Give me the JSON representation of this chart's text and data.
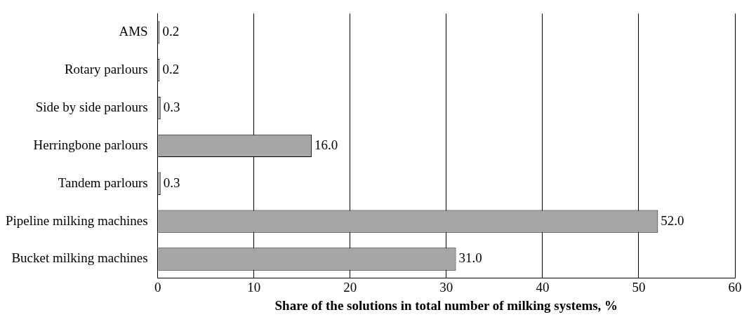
{
  "chart_data": {
    "type": "bar",
    "orientation": "horizontal",
    "xlabel": "Share of the solutions in total number of milking systems, %",
    "categories": [
      "AMS",
      "Rotary parlours",
      "Side by side parlours",
      "Herringbone parlours",
      "Tandem parlours",
      "Pipeline milking machines",
      "Bucket milking machines"
    ],
    "values": [
      0.2,
      0.2,
      0.3,
      16.0,
      0.3,
      52.0,
      31.0
    ],
    "value_labels": [
      "0.2",
      "0.2",
      "0.3",
      "16.0",
      "0.3",
      "52.0",
      "31.0"
    ],
    "color": "#a6a6a6",
    "xlim": [
      0,
      60
    ],
    "xticks": [
      0,
      10,
      20,
      30,
      40,
      50,
      60
    ],
    "grid": "x",
    "legend": false
  }
}
